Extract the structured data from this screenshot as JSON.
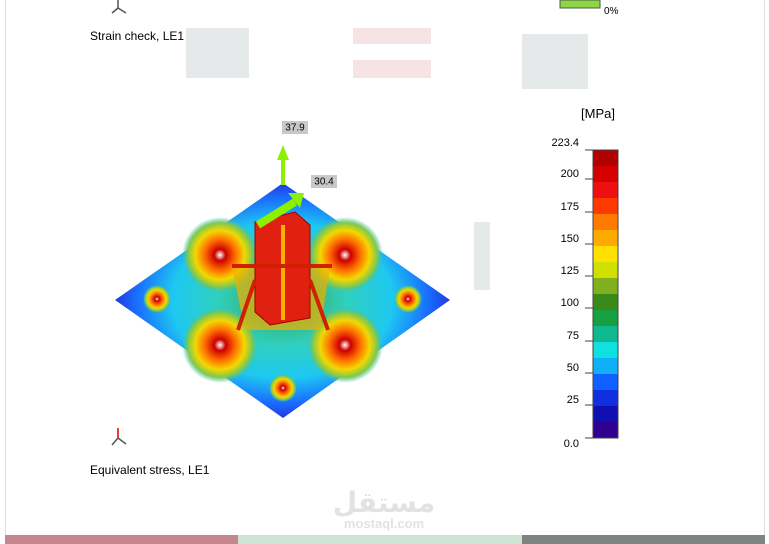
{
  "top_caption": "Strain check, LE1",
  "top_legend_label": "0%",
  "legend": {
    "unit": "[MPa]",
    "labels": [
      "223.4",
      "200",
      "175",
      "150",
      "125",
      "100",
      "75",
      "50",
      "25",
      "0.0"
    ]
  },
  "plot": {
    "arrow_labels": [
      "37.9",
      "30.4"
    ]
  },
  "bottom_caption": "Equivalent stress, LE1",
  "watermark": {
    "arabic": "مستقل",
    "latin": "mostaql.com"
  }
}
